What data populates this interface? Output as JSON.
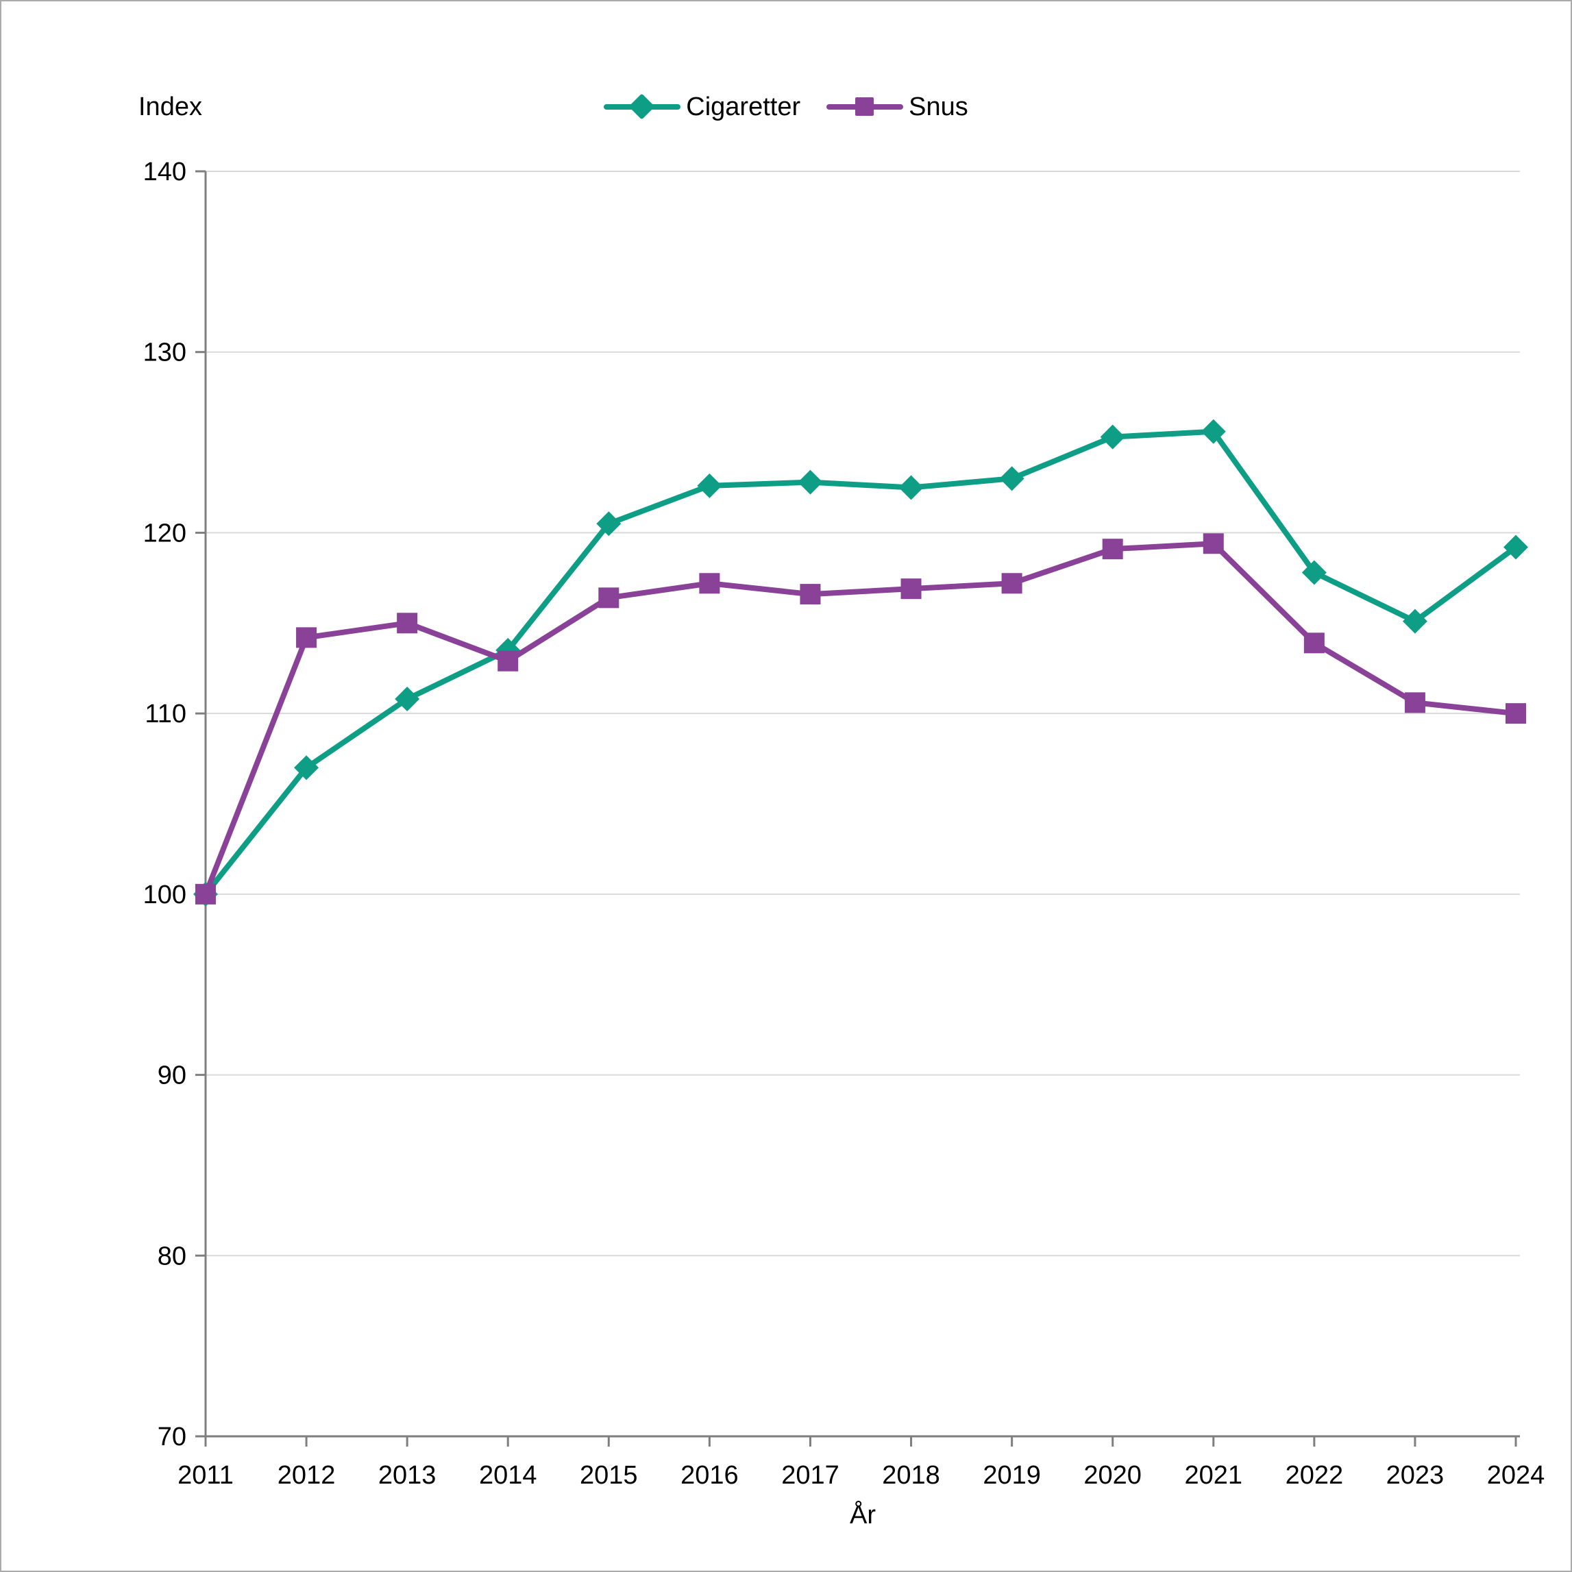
{
  "chart_data": {
    "type": "line",
    "title": "",
    "y_label": "Index",
    "x_label": "År",
    "categories": [
      "2011",
      "2012",
      "2013",
      "2014",
      "2015",
      "2016",
      "2017",
      "2018",
      "2019",
      "2020",
      "2021",
      "2022",
      "2023",
      "2024"
    ],
    "series": [
      {
        "name": "Cigaretter",
        "color": "#0d9e85",
        "marker": "diamond",
        "values": [
          100,
          107,
          110.8,
          113.5,
          120.5,
          122.6,
          122.8,
          122.5,
          123.0,
          125.3,
          125.6,
          117.8,
          115.1,
          119.2
        ]
      },
      {
        "name": "Snus",
        "color": "#8a4198",
        "marker": "square",
        "values": [
          100,
          114.2,
          115.0,
          112.9,
          116.4,
          117.2,
          116.6,
          116.9,
          117.2,
          119.1,
          119.4,
          113.9,
          110.6,
          110.0
        ]
      }
    ],
    "ylim": [
      70,
      140
    ],
    "ytick_step": 10,
    "grid": true,
    "legend_position": "top-center"
  },
  "style": {
    "grid_color": "#d9d9d9",
    "axis_color": "#7f7f7f",
    "text_color": "#000000",
    "border_color": "#ababab",
    "background": "#ffffff"
  }
}
